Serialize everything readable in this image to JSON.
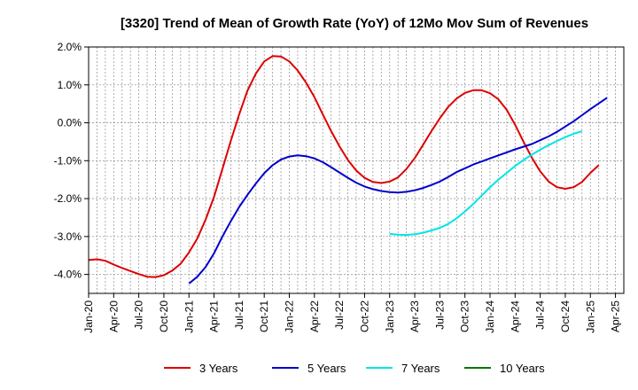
{
  "chart_data": {
    "type": "line",
    "title": "[3320]  Trend of Mean of Growth Rate (YoY) of 12Mo Mov Sum of Revenues",
    "xlabel": "",
    "ylabel": "",
    "ylim": [
      -4.5,
      2.0
    ],
    "yticks": [
      2.0,
      1.0,
      0.0,
      -1.0,
      -2.0,
      -3.0,
      -4.0
    ],
    "ytick_labels": [
      "2.0%",
      "1.0%",
      "0.0%",
      "-1.0%",
      "-2.0%",
      "-3.0%",
      "-4.0%"
    ],
    "xticks": [
      "Jan-20",
      "Apr-20",
      "Jul-20",
      "Oct-20",
      "Jan-21",
      "Apr-21",
      "Jul-21",
      "Oct-21",
      "Jan-22",
      "Apr-22",
      "Jul-22",
      "Oct-22",
      "Jan-23",
      "Apr-23",
      "Jul-23",
      "Oct-23",
      "Jan-24",
      "Apr-24",
      "Jul-24",
      "Oct-24",
      "Jan-25",
      "Apr-25"
    ],
    "x_months": 64,
    "grid": true,
    "legend_position": "bottom",
    "series": [
      {
        "name": "3 Years",
        "color": "#dd0000",
        "start_index": 0,
        "values": [
          -3.62,
          -3.6,
          -3.64,
          -3.74,
          -3.83,
          -3.91,
          -3.99,
          -4.06,
          -4.07,
          -4.02,
          -3.9,
          -3.72,
          -3.42,
          -3.05,
          -2.55,
          -1.95,
          -1.22,
          -0.48,
          0.22,
          0.85,
          1.3,
          1.62,
          1.76,
          1.75,
          1.62,
          1.38,
          1.06,
          0.68,
          0.22,
          -0.22,
          -0.62,
          -0.98,
          -1.26,
          -1.45,
          -1.56,
          -1.59,
          -1.55,
          -1.44,
          -1.22,
          -0.93,
          -0.58,
          -0.22,
          0.12,
          0.42,
          0.64,
          0.79,
          0.86,
          0.86,
          0.78,
          0.62,
          0.34,
          -0.05,
          -0.5,
          -0.92,
          -1.28,
          -1.55,
          -1.7,
          -1.74,
          -1.7,
          -1.56,
          -1.32,
          -1.12
        ]
      },
      {
        "name": "5 Years",
        "color": "#0000cc",
        "start_index": 12,
        "values": [
          -4.24,
          -4.06,
          -3.8,
          -3.44,
          -3.0,
          -2.6,
          -2.22,
          -1.9,
          -1.6,
          -1.33,
          -1.12,
          -0.97,
          -0.89,
          -0.86,
          -0.88,
          -0.94,
          -1.04,
          -1.17,
          -1.31,
          -1.45,
          -1.58,
          -1.68,
          -1.75,
          -1.8,
          -1.83,
          -1.84,
          -1.82,
          -1.78,
          -1.72,
          -1.64,
          -1.55,
          -1.43,
          -1.3,
          -1.2,
          -1.1,
          -1.02,
          -0.94,
          -0.86,
          -0.78,
          -0.7,
          -0.63,
          -0.56,
          -0.46,
          -0.36,
          -0.24,
          -0.1,
          0.04,
          0.2,
          0.36,
          0.51,
          0.66
        ]
      },
      {
        "name": "7 Years",
        "color": "#00e5e5",
        "start_index": 36,
        "values": [
          -2.93,
          -2.95,
          -2.96,
          -2.94,
          -2.9,
          -2.84,
          -2.77,
          -2.67,
          -2.52,
          -2.34,
          -2.14,
          -1.92,
          -1.7,
          -1.5,
          -1.32,
          -1.14,
          -0.98,
          -0.84,
          -0.71,
          -0.59,
          -0.48,
          -0.38,
          -0.29,
          -0.22
        ]
      },
      {
        "name": "10 Years",
        "color": "#007700",
        "start_index": 0,
        "values": []
      }
    ]
  }
}
